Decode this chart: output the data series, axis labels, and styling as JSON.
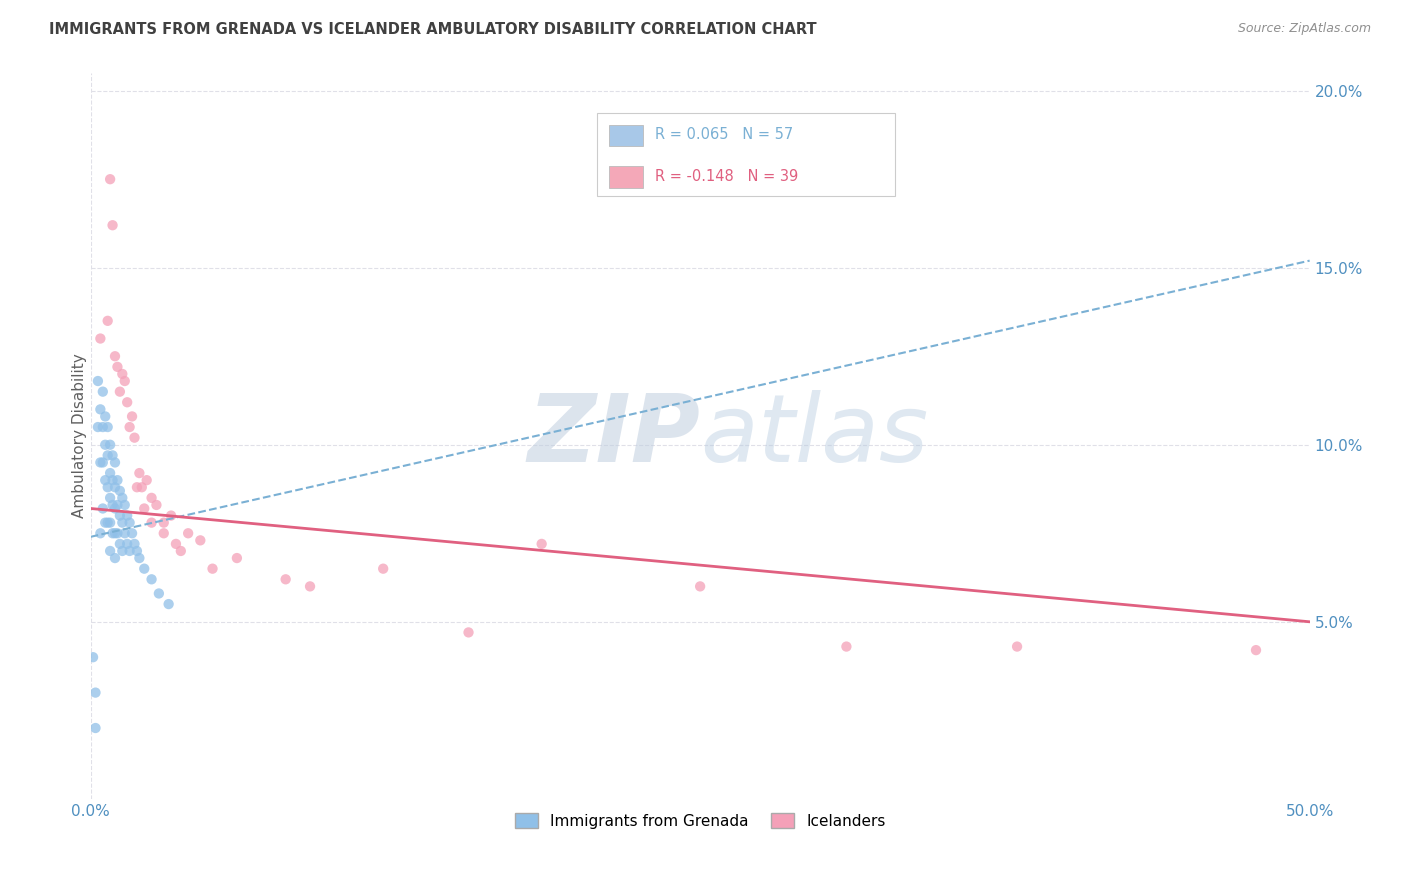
{
  "title": "IMMIGRANTS FROM GRENADA VS ICELANDER AMBULATORY DISABILITY CORRELATION CHART",
  "source": "Source: ZipAtlas.com",
  "ylabel": "Ambulatory Disability",
  "x_min": 0.0,
  "x_max": 0.5,
  "y_min": 0.0,
  "y_max": 0.205,
  "x_ticks": [
    0.0,
    0.1,
    0.2,
    0.3,
    0.4,
    0.5
  ],
  "x_tick_labels": [
    "0.0%",
    "",
    "",
    "",
    "",
    "50.0%"
  ],
  "y_ticks": [
    0.05,
    0.1,
    0.15,
    0.2
  ],
  "y_tick_labels": [
    "5.0%",
    "10.0%",
    "15.0%",
    "20.0%"
  ],
  "legend_series": [
    {
      "label": "Immigrants from Grenada",
      "color": "#a8c8e8",
      "R": "0.065",
      "N": "57"
    },
    {
      "label": "Icelanders",
      "color": "#f4a8b8",
      "R": "-0.148",
      "N": "39"
    }
  ],
  "watermark_zip": "ZIP",
  "watermark_atlas": "atlas",
  "blue_scatter_x": [
    0.001,
    0.002,
    0.002,
    0.003,
    0.003,
    0.004,
    0.004,
    0.004,
    0.005,
    0.005,
    0.005,
    0.005,
    0.006,
    0.006,
    0.006,
    0.006,
    0.007,
    0.007,
    0.007,
    0.007,
    0.008,
    0.008,
    0.008,
    0.008,
    0.008,
    0.009,
    0.009,
    0.009,
    0.009,
    0.01,
    0.01,
    0.01,
    0.01,
    0.01,
    0.011,
    0.011,
    0.011,
    0.012,
    0.012,
    0.012,
    0.013,
    0.013,
    0.013,
    0.014,
    0.014,
    0.015,
    0.015,
    0.016,
    0.016,
    0.017,
    0.018,
    0.019,
    0.02,
    0.022,
    0.025,
    0.028,
    0.032
  ],
  "blue_scatter_y": [
    0.04,
    0.03,
    0.02,
    0.118,
    0.105,
    0.11,
    0.095,
    0.075,
    0.115,
    0.105,
    0.095,
    0.082,
    0.108,
    0.1,
    0.09,
    0.078,
    0.105,
    0.097,
    0.088,
    0.078,
    0.1,
    0.092,
    0.085,
    0.078,
    0.07,
    0.097,
    0.09,
    0.083,
    0.075,
    0.095,
    0.088,
    0.082,
    0.075,
    0.068,
    0.09,
    0.083,
    0.075,
    0.087,
    0.08,
    0.072,
    0.085,
    0.078,
    0.07,
    0.083,
    0.075,
    0.08,
    0.072,
    0.078,
    0.07,
    0.075,
    0.072,
    0.07,
    0.068,
    0.065,
    0.062,
    0.058,
    0.055
  ],
  "pink_scatter_x": [
    0.004,
    0.007,
    0.008,
    0.009,
    0.01,
    0.011,
    0.012,
    0.013,
    0.014,
    0.015,
    0.016,
    0.017,
    0.018,
    0.019,
    0.02,
    0.021,
    0.022,
    0.023,
    0.025,
    0.025,
    0.027,
    0.03,
    0.03,
    0.033,
    0.035,
    0.037,
    0.04,
    0.045,
    0.05,
    0.06,
    0.08,
    0.09,
    0.12,
    0.155,
    0.185,
    0.25,
    0.31,
    0.38,
    0.478
  ],
  "pink_scatter_y": [
    0.13,
    0.135,
    0.175,
    0.162,
    0.125,
    0.122,
    0.115,
    0.12,
    0.118,
    0.112,
    0.105,
    0.108,
    0.102,
    0.088,
    0.092,
    0.088,
    0.082,
    0.09,
    0.078,
    0.085,
    0.083,
    0.075,
    0.078,
    0.08,
    0.072,
    0.07,
    0.075,
    0.073,
    0.065,
    0.068,
    0.062,
    0.06,
    0.065,
    0.047,
    0.072,
    0.06,
    0.043,
    0.043,
    0.042
  ],
  "blue_line_color": "#7ab0d4",
  "pink_line_color": "#e06080",
  "scatter_blue_color": "#90c0e8",
  "scatter_pink_color": "#f4a0b8",
  "grid_color": "#e0e0e8",
  "title_color": "#404040",
  "axis_tick_color": "#5090c0",
  "source_color": "#909090",
  "blue_line_y0": 0.074,
  "blue_line_y1": 0.152,
  "pink_line_y0": 0.082,
  "pink_line_y1": 0.05
}
